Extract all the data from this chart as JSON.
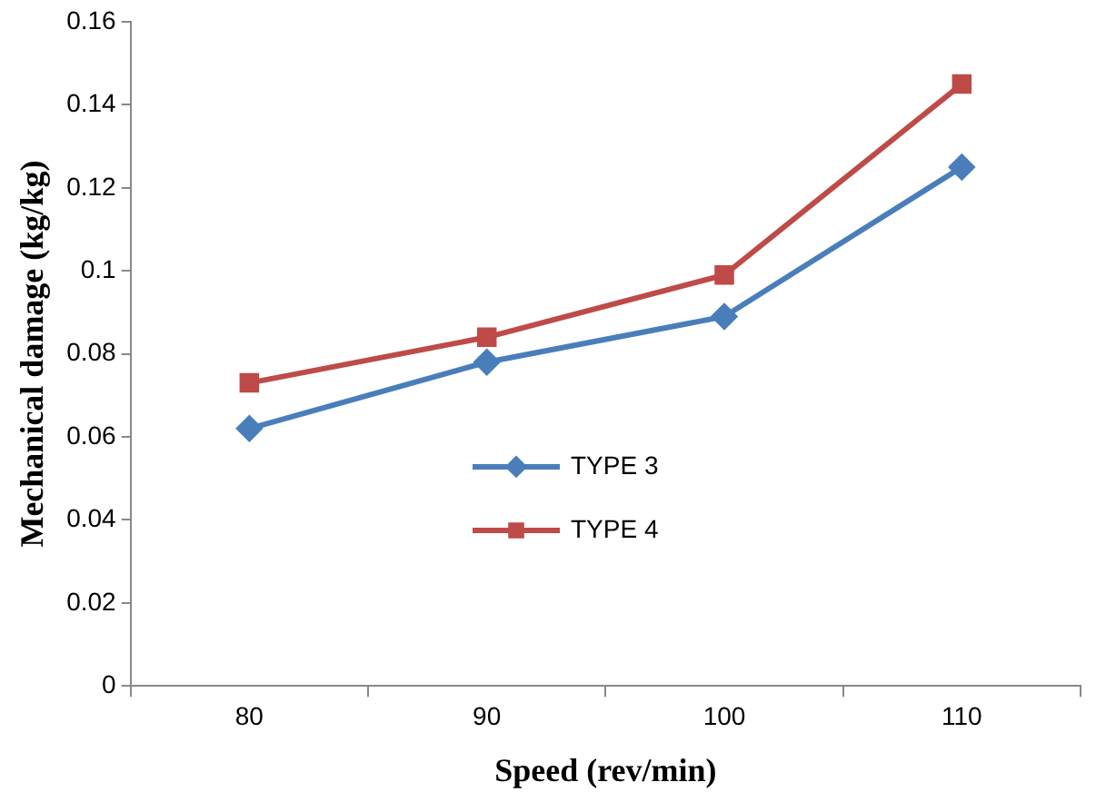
{
  "chart_data": {
    "type": "line",
    "xlabel": "Speed (rev/min)",
    "ylabel": "Mechanical damage (kg/kg)",
    "categories": [
      "80",
      "90",
      "100",
      "110"
    ],
    "series": [
      {
        "name": "TYPE 3",
        "color": "#4a7ebb",
        "marker": "diamond",
        "values": [
          0.062,
          0.078,
          0.089,
          0.125
        ]
      },
      {
        "name": "TYPE 4",
        "color": "#be4b48",
        "marker": "square",
        "values": [
          0.073,
          0.084,
          0.099,
          0.145
        ]
      }
    ],
    "ylim": [
      0,
      0.16
    ],
    "yticks": [
      0,
      0.02,
      0.04,
      0.06,
      0.08,
      0.1,
      0.12,
      0.14,
      0.16
    ],
    "grid": false,
    "legend": "center",
    "line_style": "solid"
  }
}
